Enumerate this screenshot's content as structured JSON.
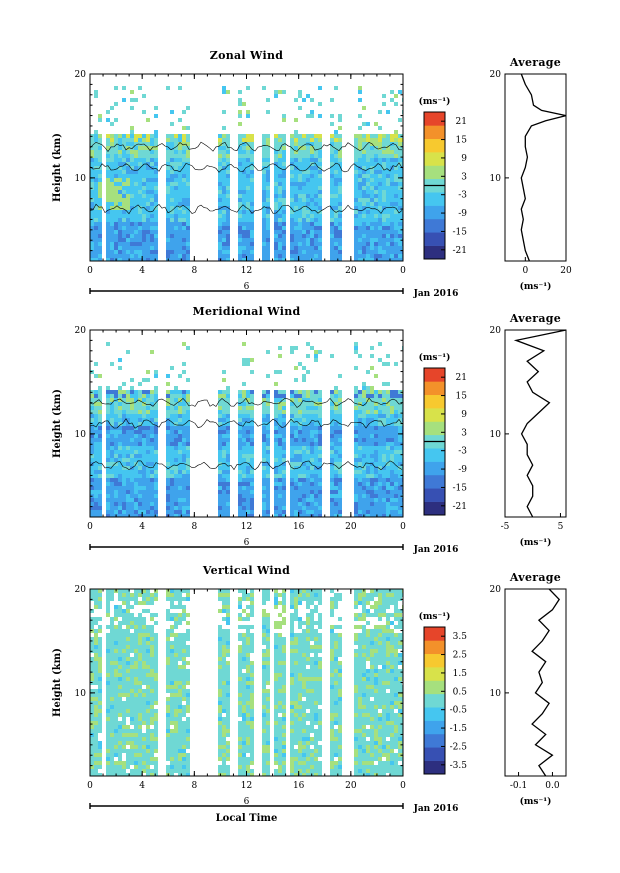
{
  "colors": {
    "palette": [
      "#2d2f7f",
      "#3750b3",
      "#3f79d6",
      "#3fa3ec",
      "#45c6f0",
      "#6fd8d4",
      "#a6e07e",
      "#d8e24a",
      "#f7c92f",
      "#f3912a",
      "#e6452a"
    ],
    "contour": "#000000",
    "axis": "#000000"
  },
  "chart_data": [
    {
      "type": "heatmap",
      "title": "Zonal Wind",
      "ylabel": "Height (km)",
      "xlabel": "",
      "x_ticks": [
        "0",
        "4",
        "8",
        "12",
        "16",
        "20",
        "0"
      ],
      "y_ticks": [
        "20",
        "10"
      ],
      "x_range_hours": [
        0,
        24
      ],
      "y_range_km": [
        2,
        20
      ],
      "date_tick": "6",
      "date_label": "Jan 2016",
      "colorbar": {
        "unit": "(ms⁻¹)",
        "range": [
          -24,
          24
        ],
        "ticks": [
          "21",
          "15",
          "9",
          "3",
          "-3",
          "-9",
          "-15",
          "-21"
        ],
        "zero_line": true
      },
      "gaps_hours": [
        [
          0.7,
          1.0
        ],
        [
          5.1,
          5.8
        ],
        [
          7.6,
          9.7
        ],
        [
          10.7,
          11.1
        ],
        [
          12.3,
          13.0
        ],
        [
          13.5,
          14.0
        ],
        [
          14.8,
          15.1
        ],
        [
          17.7,
          18.2
        ],
        [
          19.3,
          20.0
        ]
      ],
      "data_top_km": 19,
      "profile": {
        "title": "Average",
        "xlabel": "(ms⁻¹)",
        "x_ticks": [
          "0",
          "20"
        ],
        "x_tick_values": [
          0,
          20
        ],
        "y_ticks": [
          "20",
          "10"
        ],
        "x_range": [
          -10,
          20
        ],
        "height_km": [
          2,
          3,
          4,
          5,
          6,
          7,
          8,
          9,
          10,
          11,
          12,
          13,
          14,
          15,
          15.5,
          16,
          16.5,
          17,
          18,
          19,
          20
        ],
        "values": [
          2,
          0,
          -1,
          -2,
          -1,
          -2,
          0,
          -1,
          -2,
          0,
          1,
          0,
          0,
          3,
          10,
          20,
          8,
          4,
          3,
          0,
          -2
        ]
      }
    },
    {
      "type": "heatmap",
      "title": "Meridional Wind",
      "ylabel": "Height (km)",
      "xlabel": "",
      "x_ticks": [
        "0",
        "4",
        "8",
        "12",
        "16",
        "20",
        "0"
      ],
      "y_ticks": [
        "20",
        "10"
      ],
      "x_range_hours": [
        0,
        24
      ],
      "y_range_km": [
        2,
        20
      ],
      "date_tick": "6",
      "date_label": "Jan 2016",
      "colorbar": {
        "unit": "(ms⁻¹)",
        "range": [
          -24,
          24
        ],
        "ticks": [
          "21",
          "15",
          "9",
          "3",
          "-3",
          "-9",
          "-15",
          "-21"
        ],
        "zero_line": true
      },
      "gaps_hours": [
        [
          0.7,
          1.0
        ],
        [
          5.1,
          5.8
        ],
        [
          7.6,
          9.7
        ],
        [
          10.7,
          11.1
        ],
        [
          12.3,
          13.0
        ],
        [
          13.5,
          14.0
        ],
        [
          14.8,
          15.1
        ],
        [
          17.7,
          18.2
        ],
        [
          19.3,
          20.0
        ]
      ],
      "data_top_km": 19,
      "profile": {
        "title": "Average",
        "xlabel": "(ms⁻¹)",
        "x_ticks": [
          "-5",
          "5"
        ],
        "x_tick_values": [
          -5,
          5
        ],
        "y_ticks": [
          "20",
          "10"
        ],
        "x_range": [
          -5,
          6
        ],
        "height_km": [
          2,
          3,
          4,
          5,
          6,
          7,
          8,
          9,
          10,
          11,
          12,
          13,
          14,
          15,
          16,
          17,
          18,
          19,
          20
        ],
        "values": [
          0,
          -1,
          0,
          0,
          -1,
          0,
          -1,
          -1,
          -2,
          -1,
          1,
          3,
          0,
          -1,
          1,
          -1,
          2,
          -3,
          6
        ]
      }
    },
    {
      "type": "heatmap",
      "title": "Vertical Wind",
      "ylabel": "Height (km)",
      "xlabel": "Local Time",
      "x_ticks": [
        "0",
        "4",
        "8",
        "12",
        "16",
        "20",
        "0"
      ],
      "y_ticks": [
        "20",
        "10"
      ],
      "x_range_hours": [
        0,
        24
      ],
      "y_range_km": [
        2,
        20
      ],
      "date_tick": "6",
      "date_label": "Jan 2016",
      "colorbar": {
        "unit": "(ms⁻¹)",
        "range": [
          -4,
          4
        ],
        "ticks": [
          "3.5",
          "2.5",
          "1.5",
          "0.5",
          "-0.5",
          "-1.5",
          "-2.5",
          "-3.5"
        ],
        "zero_line": false
      },
      "gaps_hours": [
        [
          0.7,
          1.0
        ],
        [
          5.1,
          5.8
        ],
        [
          7.6,
          9.7
        ],
        [
          10.7,
          11.1
        ],
        [
          12.3,
          13.0
        ],
        [
          13.5,
          14.0
        ],
        [
          14.8,
          15.1
        ],
        [
          17.7,
          18.2
        ],
        [
          19.3,
          20.0
        ]
      ],
      "data_top_km": 20,
      "profile": {
        "title": "Average",
        "xlabel": "(ms⁻¹)",
        "x_ticks": [
          "-0.1",
          "0.0"
        ],
        "x_tick_values": [
          -0.1,
          0.0
        ],
        "y_ticks": [
          "20",
          "10"
        ],
        "x_range": [
          -0.14,
          0.04
        ],
        "height_km": [
          2,
          3,
          4,
          5,
          6,
          7,
          8,
          9,
          10,
          11,
          12,
          13,
          14,
          15,
          16,
          17,
          18,
          19,
          20
        ],
        "values": [
          -0.02,
          -0.04,
          0.0,
          -0.05,
          -0.02,
          -0.06,
          -0.03,
          -0.01,
          -0.05,
          -0.03,
          -0.04,
          -0.02,
          -0.06,
          -0.03,
          -0.01,
          -0.04,
          0.0,
          0.02,
          -0.01
        ]
      }
    }
  ]
}
